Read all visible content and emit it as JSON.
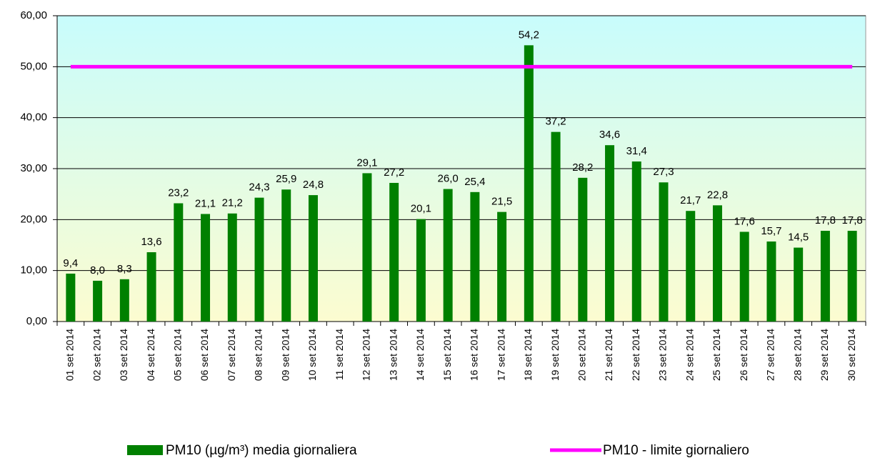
{
  "chart_data": {
    "type": "bar",
    "categories": [
      "01 set 2014",
      "02 set 2014",
      "03 set 2014",
      "04 set 2014",
      "05 set 2014",
      "06 set 2014",
      "07 set 2014",
      "08 set 2014",
      "09 set 2014",
      "10 set 2014",
      "11 set 2014",
      "12 set 2014",
      "13 set 2014",
      "14 set 2014",
      "15 set 2014",
      "16 set 2014",
      "17 set 2014",
      "18 set 2014",
      "19 set 2014",
      "20 set 2014",
      "21 set 2014",
      "22 set 2014",
      "23 set 2014",
      "24 set 2014",
      "25 set 2014",
      "26 set 2014",
      "27 set 2014",
      "28 set 2014",
      "29 set 2014",
      "30 set 2014"
    ],
    "series": [
      {
        "name": "PM10 (µg/m³) media giornaliera",
        "type": "bar",
        "color": "#008000",
        "values": [
          9.4,
          8.0,
          8.3,
          13.6,
          23.2,
          21.1,
          21.2,
          24.3,
          25.9,
          24.8,
          null,
          29.1,
          27.2,
          20.1,
          26.0,
          25.4,
          21.5,
          54.2,
          37.2,
          28.2,
          34.6,
          31.4,
          27.3,
          21.7,
          22.8,
          17.6,
          15.7,
          14.5,
          17.8,
          17.8
        ],
        "value_labels": [
          "9,4",
          "8,0",
          "8,3",
          "13,6",
          "23,2",
          "21,1",
          "21,2",
          "24,3",
          "25,9",
          "24,8",
          null,
          "29,1",
          "27,2",
          "20,1",
          "26,0",
          "25,4",
          "21,5",
          "54,2",
          "37,2",
          "28,2",
          "34,6",
          "31,4",
          "27,3",
          "21,7",
          "22,8",
          "17,6",
          "15,7",
          "14,5",
          "17,8",
          "17,8"
        ]
      },
      {
        "name": "PM10 - limite giornaliero",
        "type": "line",
        "color": "#ff00ff",
        "values": [
          50,
          50,
          50,
          50,
          50,
          50,
          50,
          50,
          50,
          50,
          50,
          50,
          50,
          50,
          50,
          50,
          50,
          50,
          50,
          50,
          50,
          50,
          50,
          50,
          50,
          50,
          50,
          50,
          50,
          50
        ]
      }
    ],
    "ylim": [
      0,
      60
    ],
    "yticks": [
      {
        "value": 0,
        "label": "0,00"
      },
      {
        "value": 10,
        "label": "10,00"
      },
      {
        "value": 20,
        "label": "20,00"
      },
      {
        "value": 30,
        "label": "30,00"
      },
      {
        "value": 40,
        "label": "40,00"
      },
      {
        "value": 50,
        "label": "50,00"
      },
      {
        "value": 60,
        "label": "60,00"
      }
    ],
    "grid": true
  }
}
